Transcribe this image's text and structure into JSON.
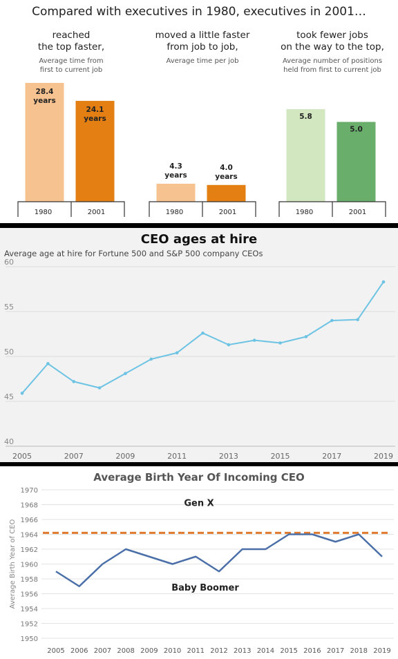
{
  "panel1": {
    "title": "Compared with executives in 1980, executives in 2001…",
    "groups": [
      {
        "heading": [
          "reached",
          "the top faster,"
        ],
        "sub": [
          "Average time from",
          "first to current job"
        ]
      },
      {
        "heading": [
          "moved a little faster",
          "from job to job,"
        ],
        "sub": [
          "Average time per job"
        ]
      },
      {
        "heading": [
          "took fewer jobs",
          "on the way to the top,"
        ],
        "sub": [
          "Average number of positions",
          "held from first to current job"
        ]
      }
    ]
  },
  "panel2": {
    "title": "CEO ages at hire",
    "subtitle": "Average age at hire for Fortune 500 and S&P 500 company CEOs"
  },
  "panel3": {
    "title": "Average Birth Year Of Incoming CEO",
    "annotations": {
      "upper": "Gen X",
      "lower": "Baby Boomer"
    }
  },
  "chart_data": [
    {
      "type": "bar",
      "title": "reached the top faster,",
      "subtitle": "Average time from first to current job",
      "categories": [
        "1980",
        "2001"
      ],
      "values": [
        28.4,
        24.1
      ],
      "value_labels": [
        [
          "28.4",
          "years"
        ],
        [
          "24.1",
          "years"
        ]
      ],
      "colors": [
        "#f6c28f",
        "#e37f13"
      ]
    },
    {
      "type": "bar",
      "title": "moved a little faster from job to job,",
      "subtitle": "Average time per job",
      "categories": [
        "1980",
        "2001"
      ],
      "values": [
        4.3,
        4.0
      ],
      "value_labels": [
        [
          "4.3",
          "years"
        ],
        [
          "4.0",
          "years"
        ]
      ],
      "colors": [
        "#f6c28f",
        "#e37f13"
      ]
    },
    {
      "type": "bar",
      "title": "took fewer jobs on the way to the top,",
      "subtitle": "Average number of positions held from first to current job",
      "categories": [
        "1980",
        "2001"
      ],
      "values": [
        5.8,
        5.0
      ],
      "value_labels": [
        [
          "5.8"
        ],
        [
          "5.0"
        ]
      ],
      "colors": [
        "#d2e6c0",
        "#6aae6c"
      ]
    },
    {
      "type": "line",
      "title": "CEO ages at hire",
      "subtitle": "Average age at hire for Fortune 500 and S&P 500 company CEOs",
      "x": [
        2005,
        2006,
        2007,
        2008,
        2009,
        2010,
        2011,
        2012,
        2013,
        2014,
        2015,
        2016,
        2017,
        2018,
        2019
      ],
      "y": [
        45.9,
        49.2,
        47.2,
        46.5,
        48.1,
        49.7,
        50.4,
        52.6,
        51.3,
        51.8,
        51.5,
        52.2,
        54.0,
        54.1,
        58.3
      ],
      "xticks": [
        "2005",
        "2007",
        "2009",
        "2011",
        "2013",
        "2015",
        "2017",
        "2019"
      ],
      "yticks": [
        "40",
        "45",
        "50",
        "55",
        "60"
      ],
      "ylim": [
        40,
        60
      ],
      "grid": true,
      "color": "#6cc3e3"
    },
    {
      "type": "line",
      "title": "Average Birth Year Of Incoming CEO",
      "ylabel": "Average Birth Year of CEO",
      "x": [
        2005,
        2006,
        2007,
        2008,
        2009,
        2010,
        2011,
        2012,
        2013,
        2014,
        2015,
        2016,
        2017,
        2018,
        2019
      ],
      "y": [
        1959,
        1957,
        1960,
        1962,
        1961,
        1960,
        1961,
        1959,
        1962,
        1962,
        1964,
        1964,
        1963,
        1964,
        1961
      ],
      "xticks": [
        "2005",
        "2006",
        "2007",
        "2008",
        "2009",
        "2010",
        "2011",
        "2012",
        "2013",
        "2014",
        "2015",
        "2016",
        "2017",
        "2018",
        "2019"
      ],
      "yticks": [
        "1950",
        "1952",
        "1954",
        "1956",
        "1958",
        "1960",
        "1962",
        "1964",
        "1966",
        "1968",
        "1970"
      ],
      "ylim": [
        1950,
        1970
      ],
      "reference_line": 1964.2,
      "grid": true,
      "color": "#4a6fa8",
      "reference_color": "#e07a2f"
    }
  ]
}
